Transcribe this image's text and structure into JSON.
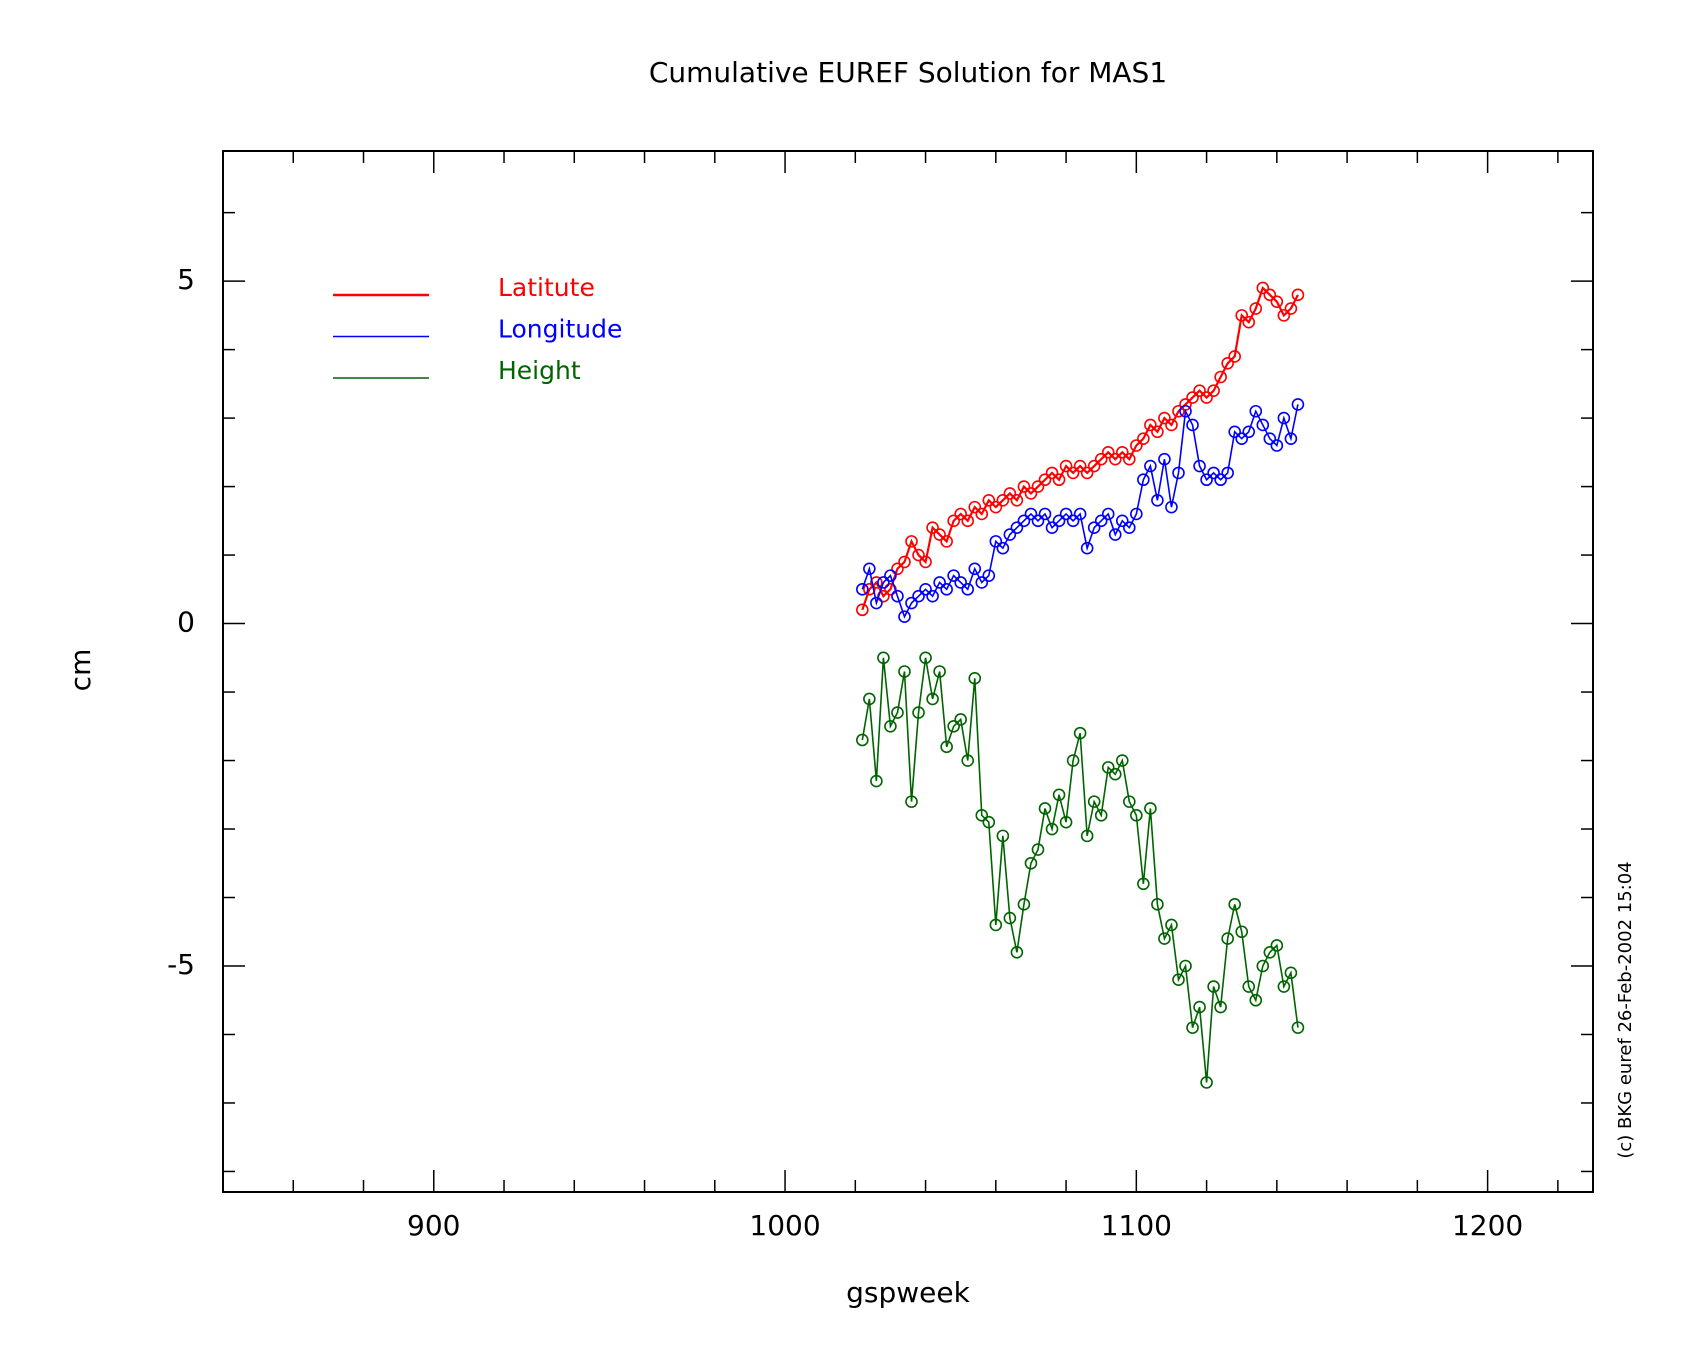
{
  "chart_data": {
    "type": "line",
    "title": "Cumulative EUREF Solution for MAS1",
    "xlabel": "gspweek",
    "ylabel": "cm",
    "annotation": "(c) BKG euref 26-Feb-2002 15:04",
    "xlim": [
      840,
      1230
    ],
    "xticks": [
      900,
      1000,
      1100,
      1200
    ],
    "xminorticks": [
      860,
      880,
      920,
      940,
      960,
      980,
      1020,
      1040,
      1060,
      1080,
      1120,
      1140,
      1160,
      1180,
      1220
    ],
    "ylim": [
      -8.3,
      6.9
    ],
    "yticks": [
      -5,
      0,
      5
    ],
    "yminorticks": [
      -8,
      -7,
      -6,
      -4,
      -3,
      -2,
      -1,
      1,
      2,
      3,
      4,
      6
    ],
    "legend": "upper left",
    "markers": true,
    "x": [
      1022,
      1024,
      1026,
      1028,
      1030,
      1032,
      1034,
      1036,
      1038,
      1040,
      1042,
      1044,
      1046,
      1048,
      1050,
      1052,
      1054,
      1056,
      1058,
      1060,
      1062,
      1064,
      1066,
      1068,
      1070,
      1072,
      1074,
      1076,
      1078,
      1080,
      1082,
      1084,
      1086,
      1088,
      1090,
      1092,
      1094,
      1096,
      1098,
      1100,
      1102,
      1104,
      1106,
      1108,
      1110,
      1112,
      1114,
      1116,
      1118,
      1120,
      1122,
      1124,
      1126,
      1128,
      1130,
      1132,
      1134,
      1136,
      1138,
      1140,
      1142,
      1144,
      1146
    ],
    "series": [
      {
        "name": "Latitute",
        "color": "#ff0000",
        "values": [
          0.2,
          0.5,
          0.6,
          0.4,
          0.5,
          0.8,
          0.9,
          1.2,
          1.0,
          0.9,
          1.4,
          1.3,
          1.2,
          1.5,
          1.6,
          1.5,
          1.7,
          1.6,
          1.8,
          1.7,
          1.8,
          1.9,
          1.8,
          2.0,
          1.9,
          2.0,
          2.1,
          2.2,
          2.1,
          2.3,
          2.2,
          2.3,
          2.2,
          2.3,
          2.4,
          2.5,
          2.4,
          2.5,
          2.4,
          2.6,
          2.7,
          2.9,
          2.8,
          3.0,
          2.9,
          3.1,
          3.2,
          3.3,
          3.4,
          3.3,
          3.4,
          3.6,
          3.8,
          3.9,
          4.5,
          4.4,
          4.6,
          4.9,
          4.8,
          4.7,
          4.5,
          4.6,
          4.8
        ]
      },
      {
        "name": "Longitude",
        "color": "#0000ff",
        "values": [
          0.5,
          0.8,
          0.3,
          0.6,
          0.7,
          0.4,
          0.1,
          0.3,
          0.4,
          0.5,
          0.4,
          0.6,
          0.5,
          0.7,
          0.6,
          0.5,
          0.8,
          0.6,
          0.7,
          1.2,
          1.1,
          1.3,
          1.4,
          1.5,
          1.6,
          1.5,
          1.6,
          1.4,
          1.5,
          1.6,
          1.5,
          1.6,
          1.1,
          1.4,
          1.5,
          1.6,
          1.3,
          1.5,
          1.4,
          1.6,
          2.1,
          2.3,
          1.8,
          2.4,
          1.7,
          2.2,
          3.1,
          2.9,
          2.3,
          2.1,
          2.2,
          2.1,
          2.2,
          2.8,
          2.7,
          2.8,
          3.1,
          2.9,
          2.7,
          2.6,
          3.0,
          2.7,
          3.2
        ]
      },
      {
        "name": "Height",
        "color": "#006400",
        "values": [
          -1.7,
          -1.1,
          -2.3,
          -0.5,
          -1.5,
          -1.3,
          -0.7,
          -2.6,
          -1.3,
          -0.5,
          -1.1,
          -0.7,
          -1.8,
          -1.5,
          -1.4,
          -2.0,
          -0.8,
          -2.8,
          -2.9,
          -4.4,
          -3.1,
          -4.3,
          -4.8,
          -4.1,
          -3.5,
          -3.3,
          -2.7,
          -3.0,
          -2.5,
          -2.9,
          -2.0,
          -1.6,
          -3.1,
          -2.6,
          -2.8,
          -2.1,
          -2.2,
          -2.0,
          -2.6,
          -2.8,
          -3.8,
          -2.7,
          -4.1,
          -4.6,
          -4.4,
          -5.2,
          -5.0,
          -5.9,
          -5.6,
          -6.7,
          -5.3,
          -5.6,
          -4.6,
          -4.1,
          -4.5,
          -5.3,
          -5.5,
          -5.0,
          -4.8,
          -4.7,
          -5.3,
          -5.1,
          -5.9
        ]
      }
    ]
  }
}
